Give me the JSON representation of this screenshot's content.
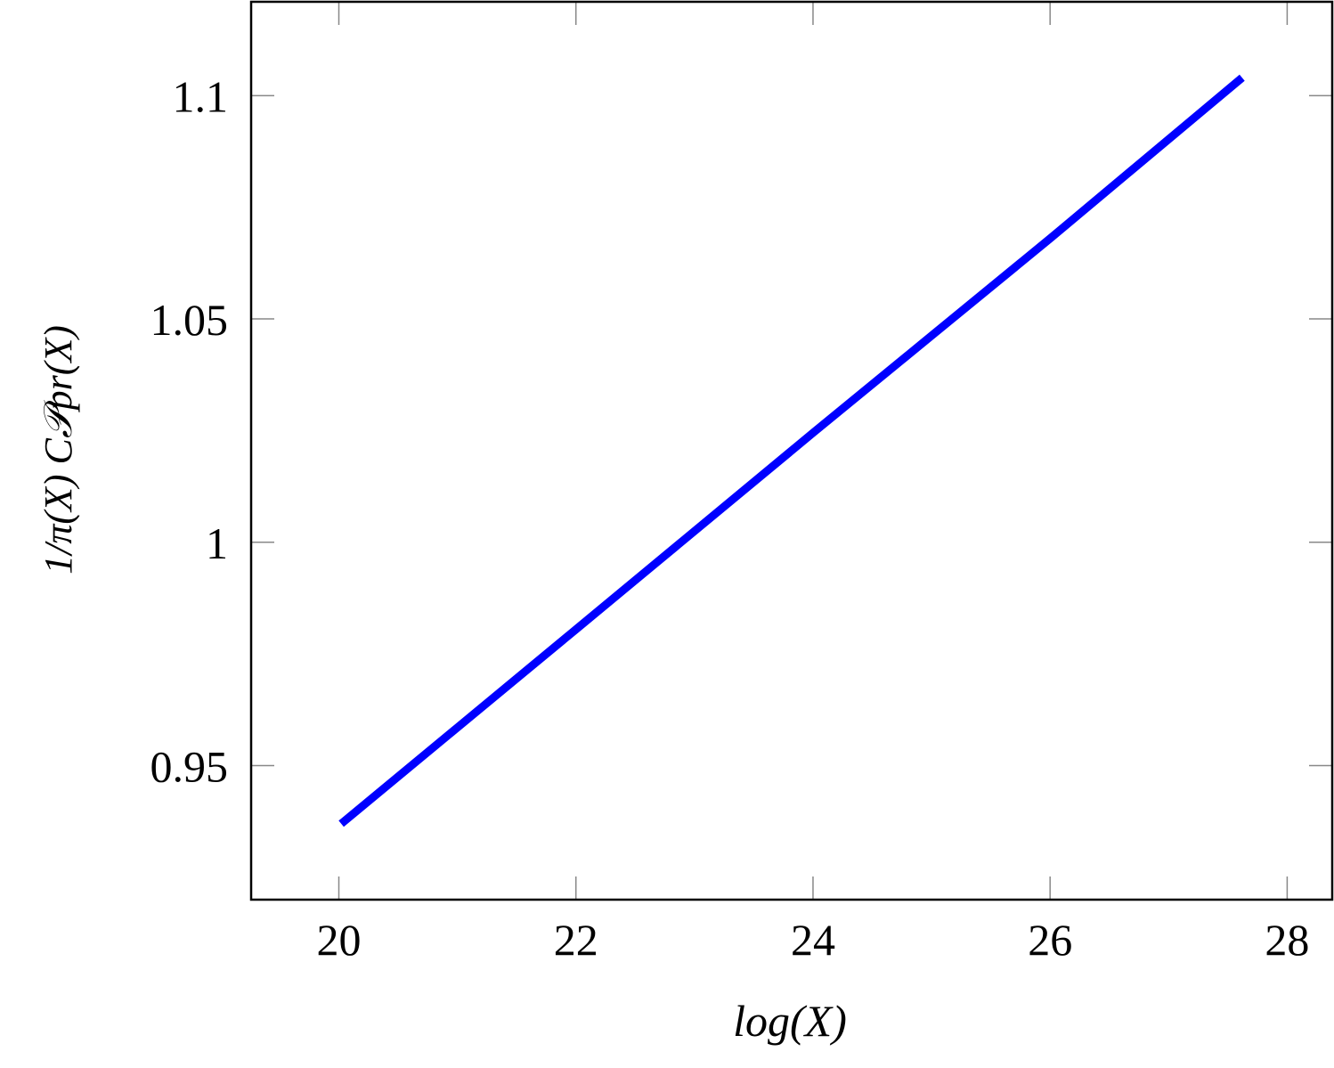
{
  "chart_data": {
    "type": "line",
    "x_label": "log(X)",
    "y_label": "1/π(X) C𝒫pr(X)",
    "xlim": [
      19.26,
      28.38
    ],
    "ylim": [
      0.92,
      1.121
    ],
    "xticks": [
      20,
      22,
      24,
      26,
      28
    ],
    "yticks": [
      0.95,
      1,
      1.05,
      1.1
    ],
    "grid": false,
    "series": [
      {
        "color": "#0000ff",
        "x": [
          20.02,
          22,
          24,
          26,
          27.62
        ],
        "values": [
          0.937,
          0.9805,
          1.0245,
          1.068,
          1.104
        ]
      }
    ]
  }
}
